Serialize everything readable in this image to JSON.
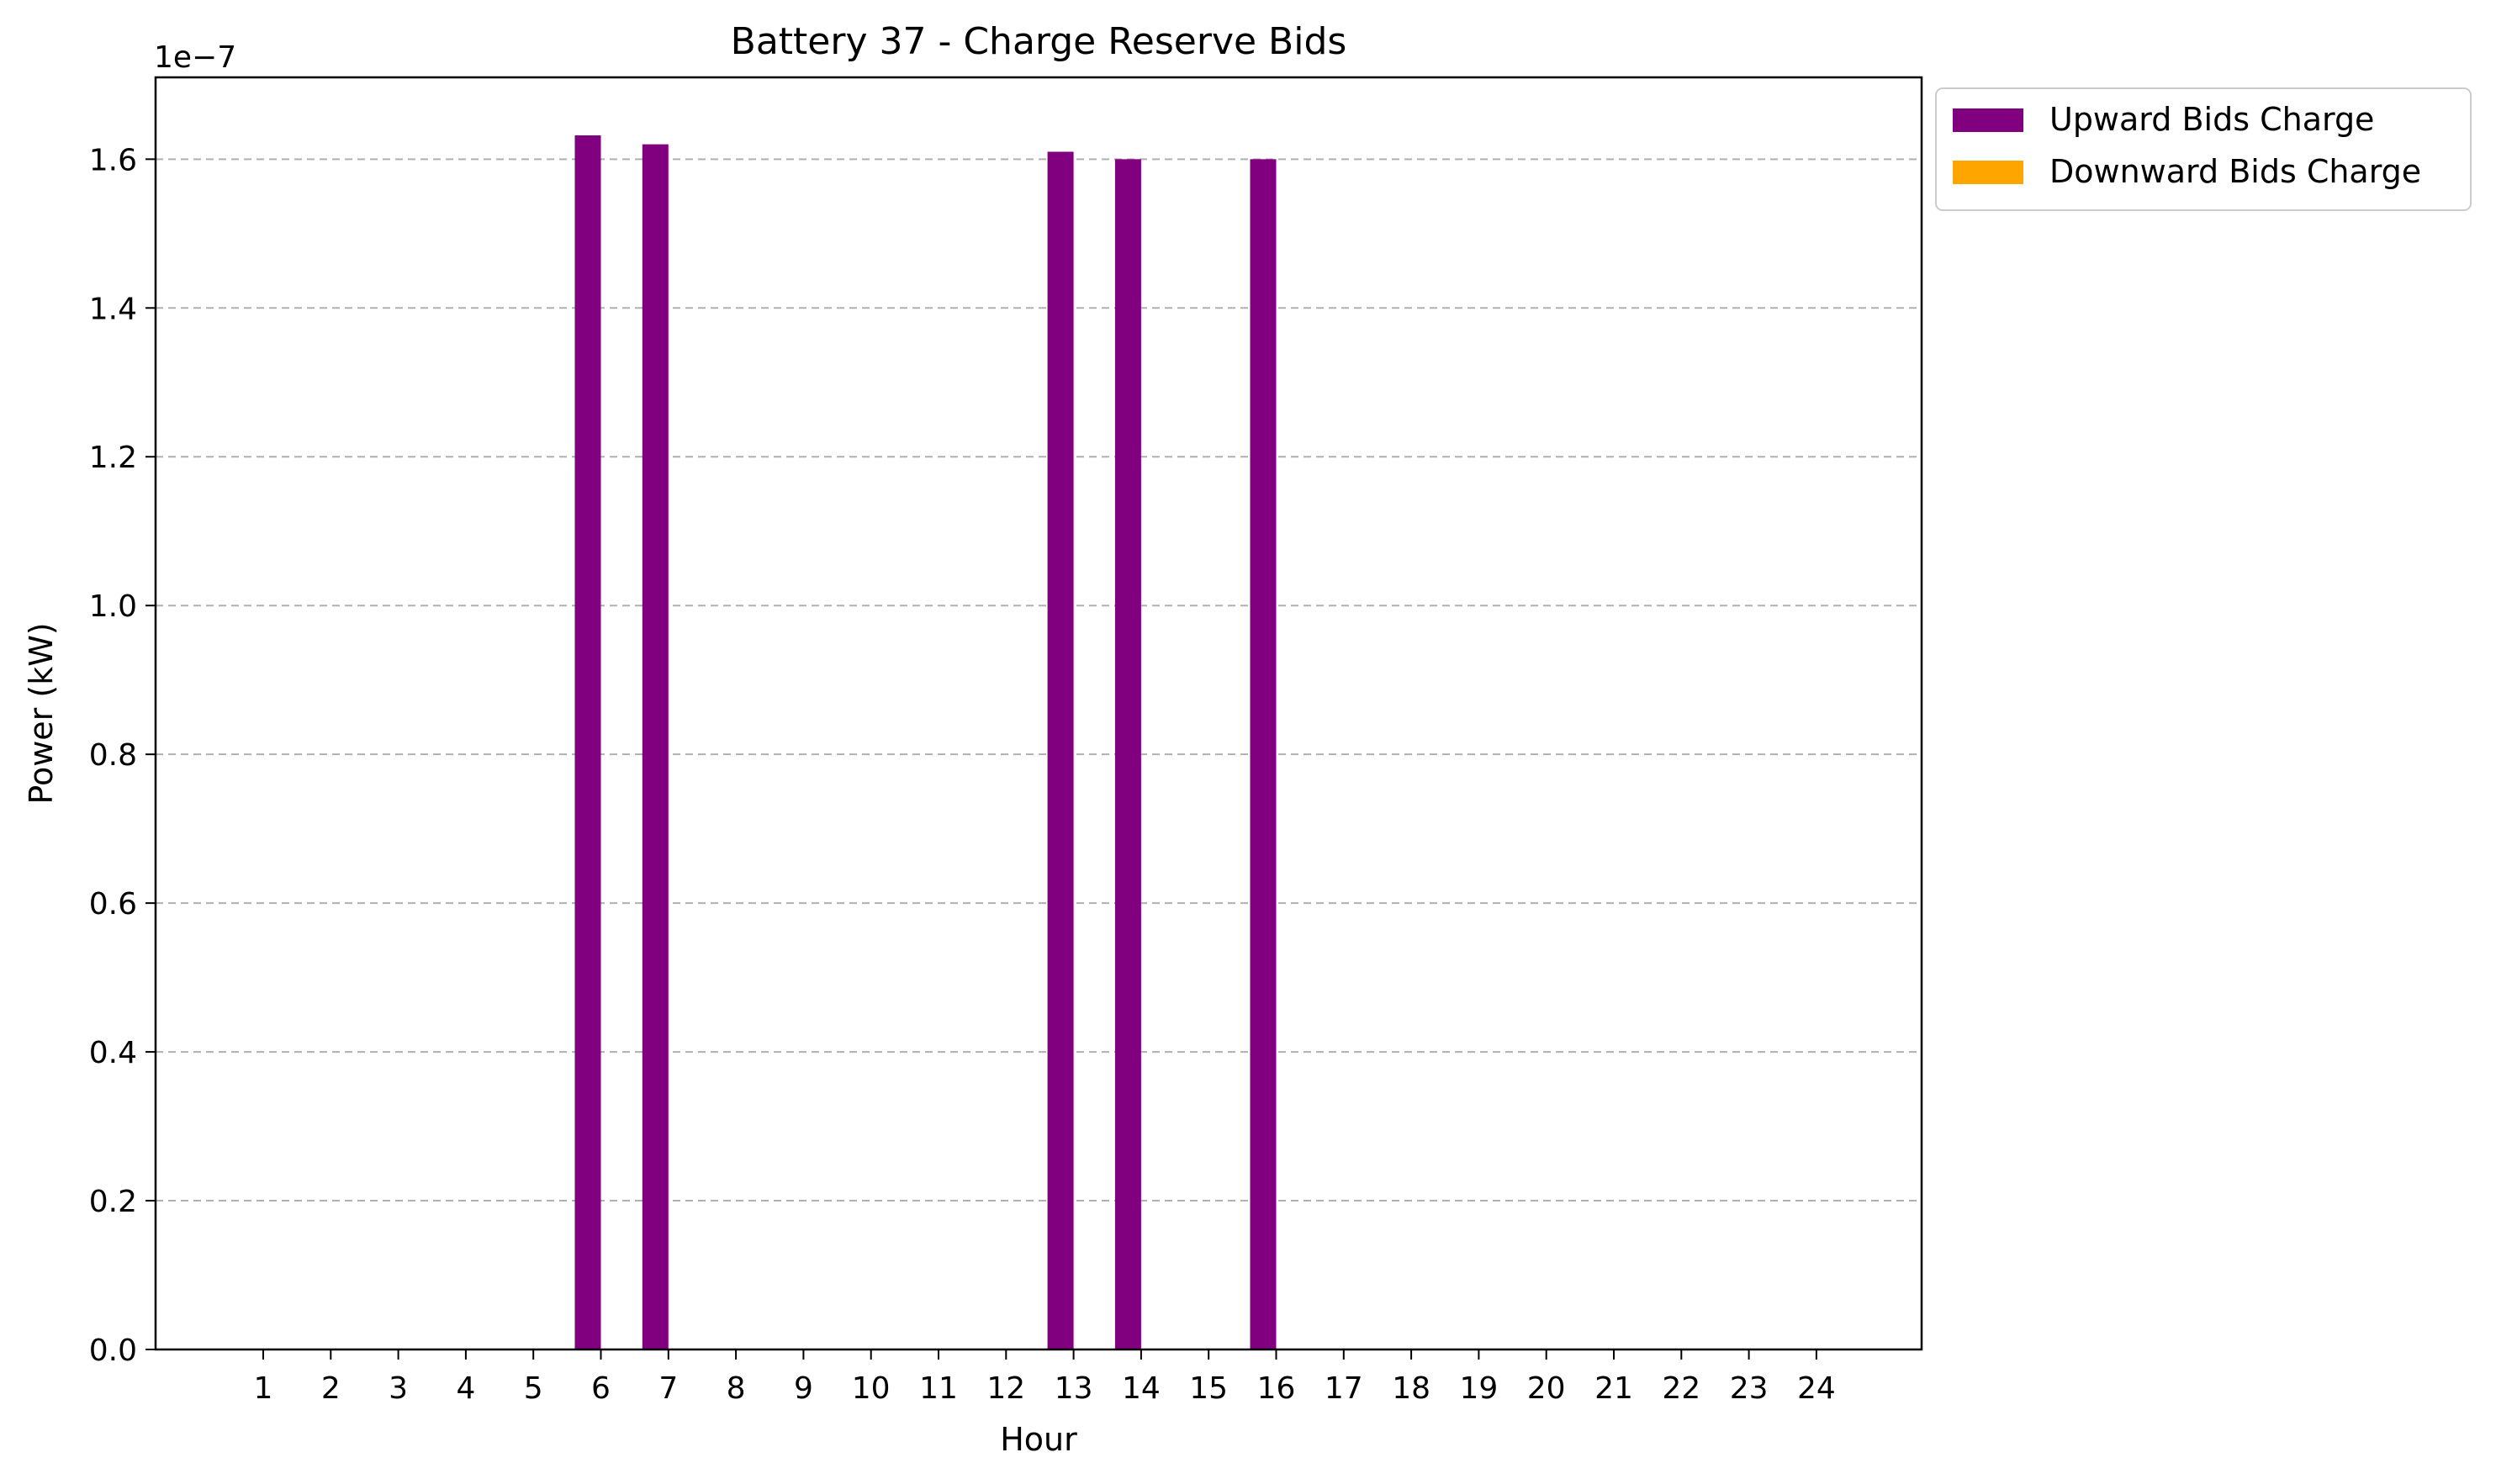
{
  "chart_data": {
    "type": "bar",
    "title": "Battery 37 - Charge Reserve Bids",
    "xlabel": "Hour",
    "ylabel": "Power (kW)",
    "y_offset_text": "1e−7",
    "y_scale_factor": 1e-07,
    "categories": [
      "1",
      "2",
      "3",
      "4",
      "5",
      "6",
      "7",
      "8",
      "9",
      "10",
      "11",
      "12",
      "13",
      "14",
      "15",
      "16",
      "17",
      "18",
      "19",
      "20",
      "21",
      "22",
      "23",
      "24"
    ],
    "series": [
      {
        "name": "Upward Bids Charge",
        "color": "#800080",
        "values": [
          0,
          0,
          0,
          0,
          0,
          1.632e-07,
          1.62e-07,
          0,
          0,
          0,
          0,
          0,
          1.61e-07,
          1.6e-07,
          0,
          1.6e-07,
          0,
          0,
          0,
          0,
          0,
          0,
          0,
          0
        ]
      },
      {
        "name": "Downward Bids Charge",
        "color": "#FFA500",
        "values": [
          0,
          0,
          0,
          0,
          0,
          0,
          0,
          0,
          0,
          0,
          0,
          0,
          0,
          0,
          0,
          0,
          0,
          0,
          0,
          0,
          0,
          0,
          0,
          0
        ]
      }
    ],
    "ylim": [
      0,
      1.71e-07
    ],
    "yticks": [
      "0.0",
      "0.2",
      "0.4",
      "0.6",
      "0.8",
      "1.0",
      "1.2",
      "1.4",
      "1.6"
    ],
    "grid": "y dashed",
    "legend_position": "outside upper right"
  }
}
